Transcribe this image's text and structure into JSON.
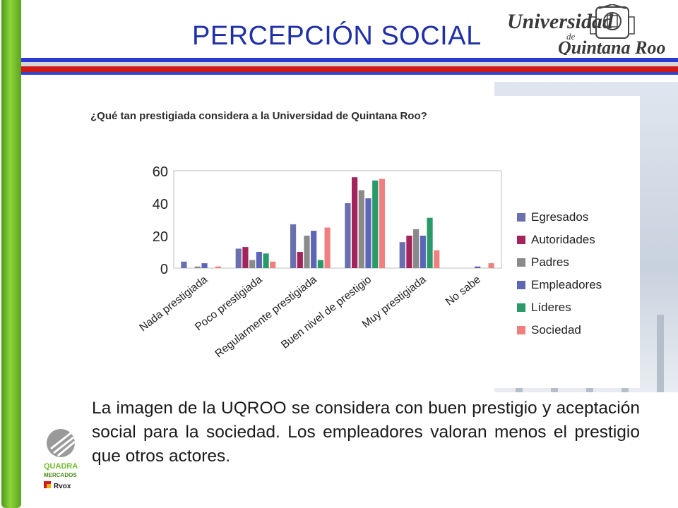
{
  "header": {
    "title": "PERCEPCIÓN SOCIAL",
    "logo_text_line1": "Universidad",
    "logo_text_line2": "de",
    "logo_text_line3": "Quintana Roo"
  },
  "question": "¿Qué tan prestigiada considera a la Universidad de Quintana Roo?",
  "body_text": "La imagen de la UQROO se considera con buen prestigio y  aceptación social para la sociedad. Los empleadores valoran menos el prestigio que otros actores.",
  "quadra_logo": {
    "line1": "QUADRA",
    "line2": "MERCADOS",
    "line3": "Rvox"
  },
  "colors": {
    "accent_blue": "#1f2fa8",
    "accent_red": "#d01a18",
    "accent_green": "#6fbe2a"
  },
  "chart_data": {
    "type": "bar",
    "title": "¿Qué tan prestigiada considera a la Universidad de Quintana Roo?",
    "categories": [
      "Nada prestigiada",
      "Poco prestigiada",
      "Regularmente prestigiada",
      "Buen nivel de prestigio",
      "Muy prestigiada",
      "No sabe"
    ],
    "series": [
      {
        "name": "Egresados",
        "color": "#6a6fae",
        "values": [
          4,
          12,
          27,
          40,
          16,
          0
        ]
      },
      {
        "name": "Autoridades",
        "color": "#a3245c",
        "values": [
          0,
          13,
          10,
          56,
          20,
          0
        ]
      },
      {
        "name": "Padres",
        "color": "#8a8a8a",
        "values": [
          1,
          5,
          20,
          48,
          24,
          0
        ]
      },
      {
        "name": "Empleadores",
        "color": "#5d66b5",
        "values": [
          3,
          10,
          23,
          43,
          20,
          1
        ]
      },
      {
        "name": "Líderes",
        "color": "#2a9a6a",
        "values": [
          0,
          9,
          5,
          54,
          31,
          0
        ]
      },
      {
        "name": "Sociedad",
        "color": "#f08080",
        "values": [
          1,
          4,
          25,
          55,
          11,
          3
        ]
      }
    ],
    "y_ticks": [
      "0",
      "20",
      "40",
      "60"
    ],
    "ylim": [
      0,
      60
    ],
    "grid": true,
    "legend": "right"
  }
}
